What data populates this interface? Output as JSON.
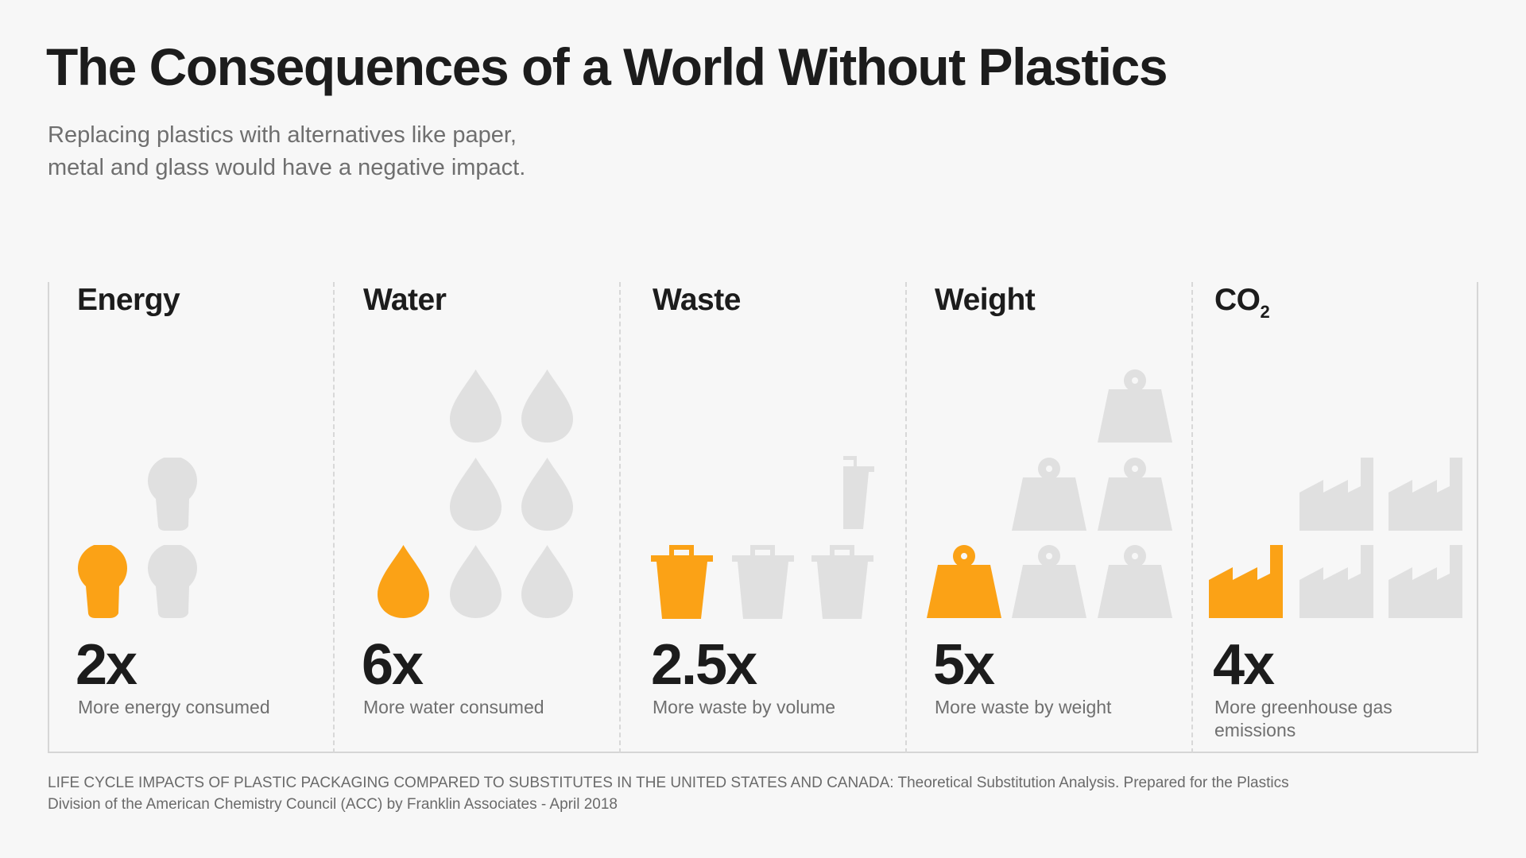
{
  "header": {
    "title": "The Consequences of a World Without Plastics",
    "subtitle_line1": "Replacing plastics with alternatives like paper,",
    "subtitle_line2": "metal and glass would have a negative impact."
  },
  "colors": {
    "accent": "#FBA216",
    "inactive": "#E0E0E0",
    "background": "#F7F7F7"
  },
  "metrics": [
    {
      "label": "Energy",
      "value": "2x",
      "multiplier": 2,
      "description": "More energy consumed",
      "icon": "lightbulb-icon"
    },
    {
      "label": "Water",
      "value": "6x",
      "multiplier": 6,
      "description": "More water consumed",
      "icon": "water-drop-icon"
    },
    {
      "label": "Waste",
      "value": "2.5x",
      "multiplier": 2.5,
      "description": "More waste by volume",
      "icon": "trash-bin-icon"
    },
    {
      "label": "Weight",
      "value": "5x",
      "multiplier": 5,
      "description": "More waste by weight",
      "icon": "weight-icon"
    },
    {
      "label": "CO",
      "label_sub": "2",
      "value": "4x",
      "multiplier": 4,
      "description": "More greenhouse gas emissions",
      "icon": "factory-icon"
    }
  ],
  "footer": {
    "line1": "LIFE CYCLE IMPACTS OF PLASTIC PACKAGING COMPARED TO SUBSTITUTES IN THE UNITED STATES AND CANADA: Theoretical Substitution Analysis. Prepared for the Plastics",
    "line2": "Division of the American Chemistry Council (ACC) by Franklin Associates - April 2018"
  }
}
